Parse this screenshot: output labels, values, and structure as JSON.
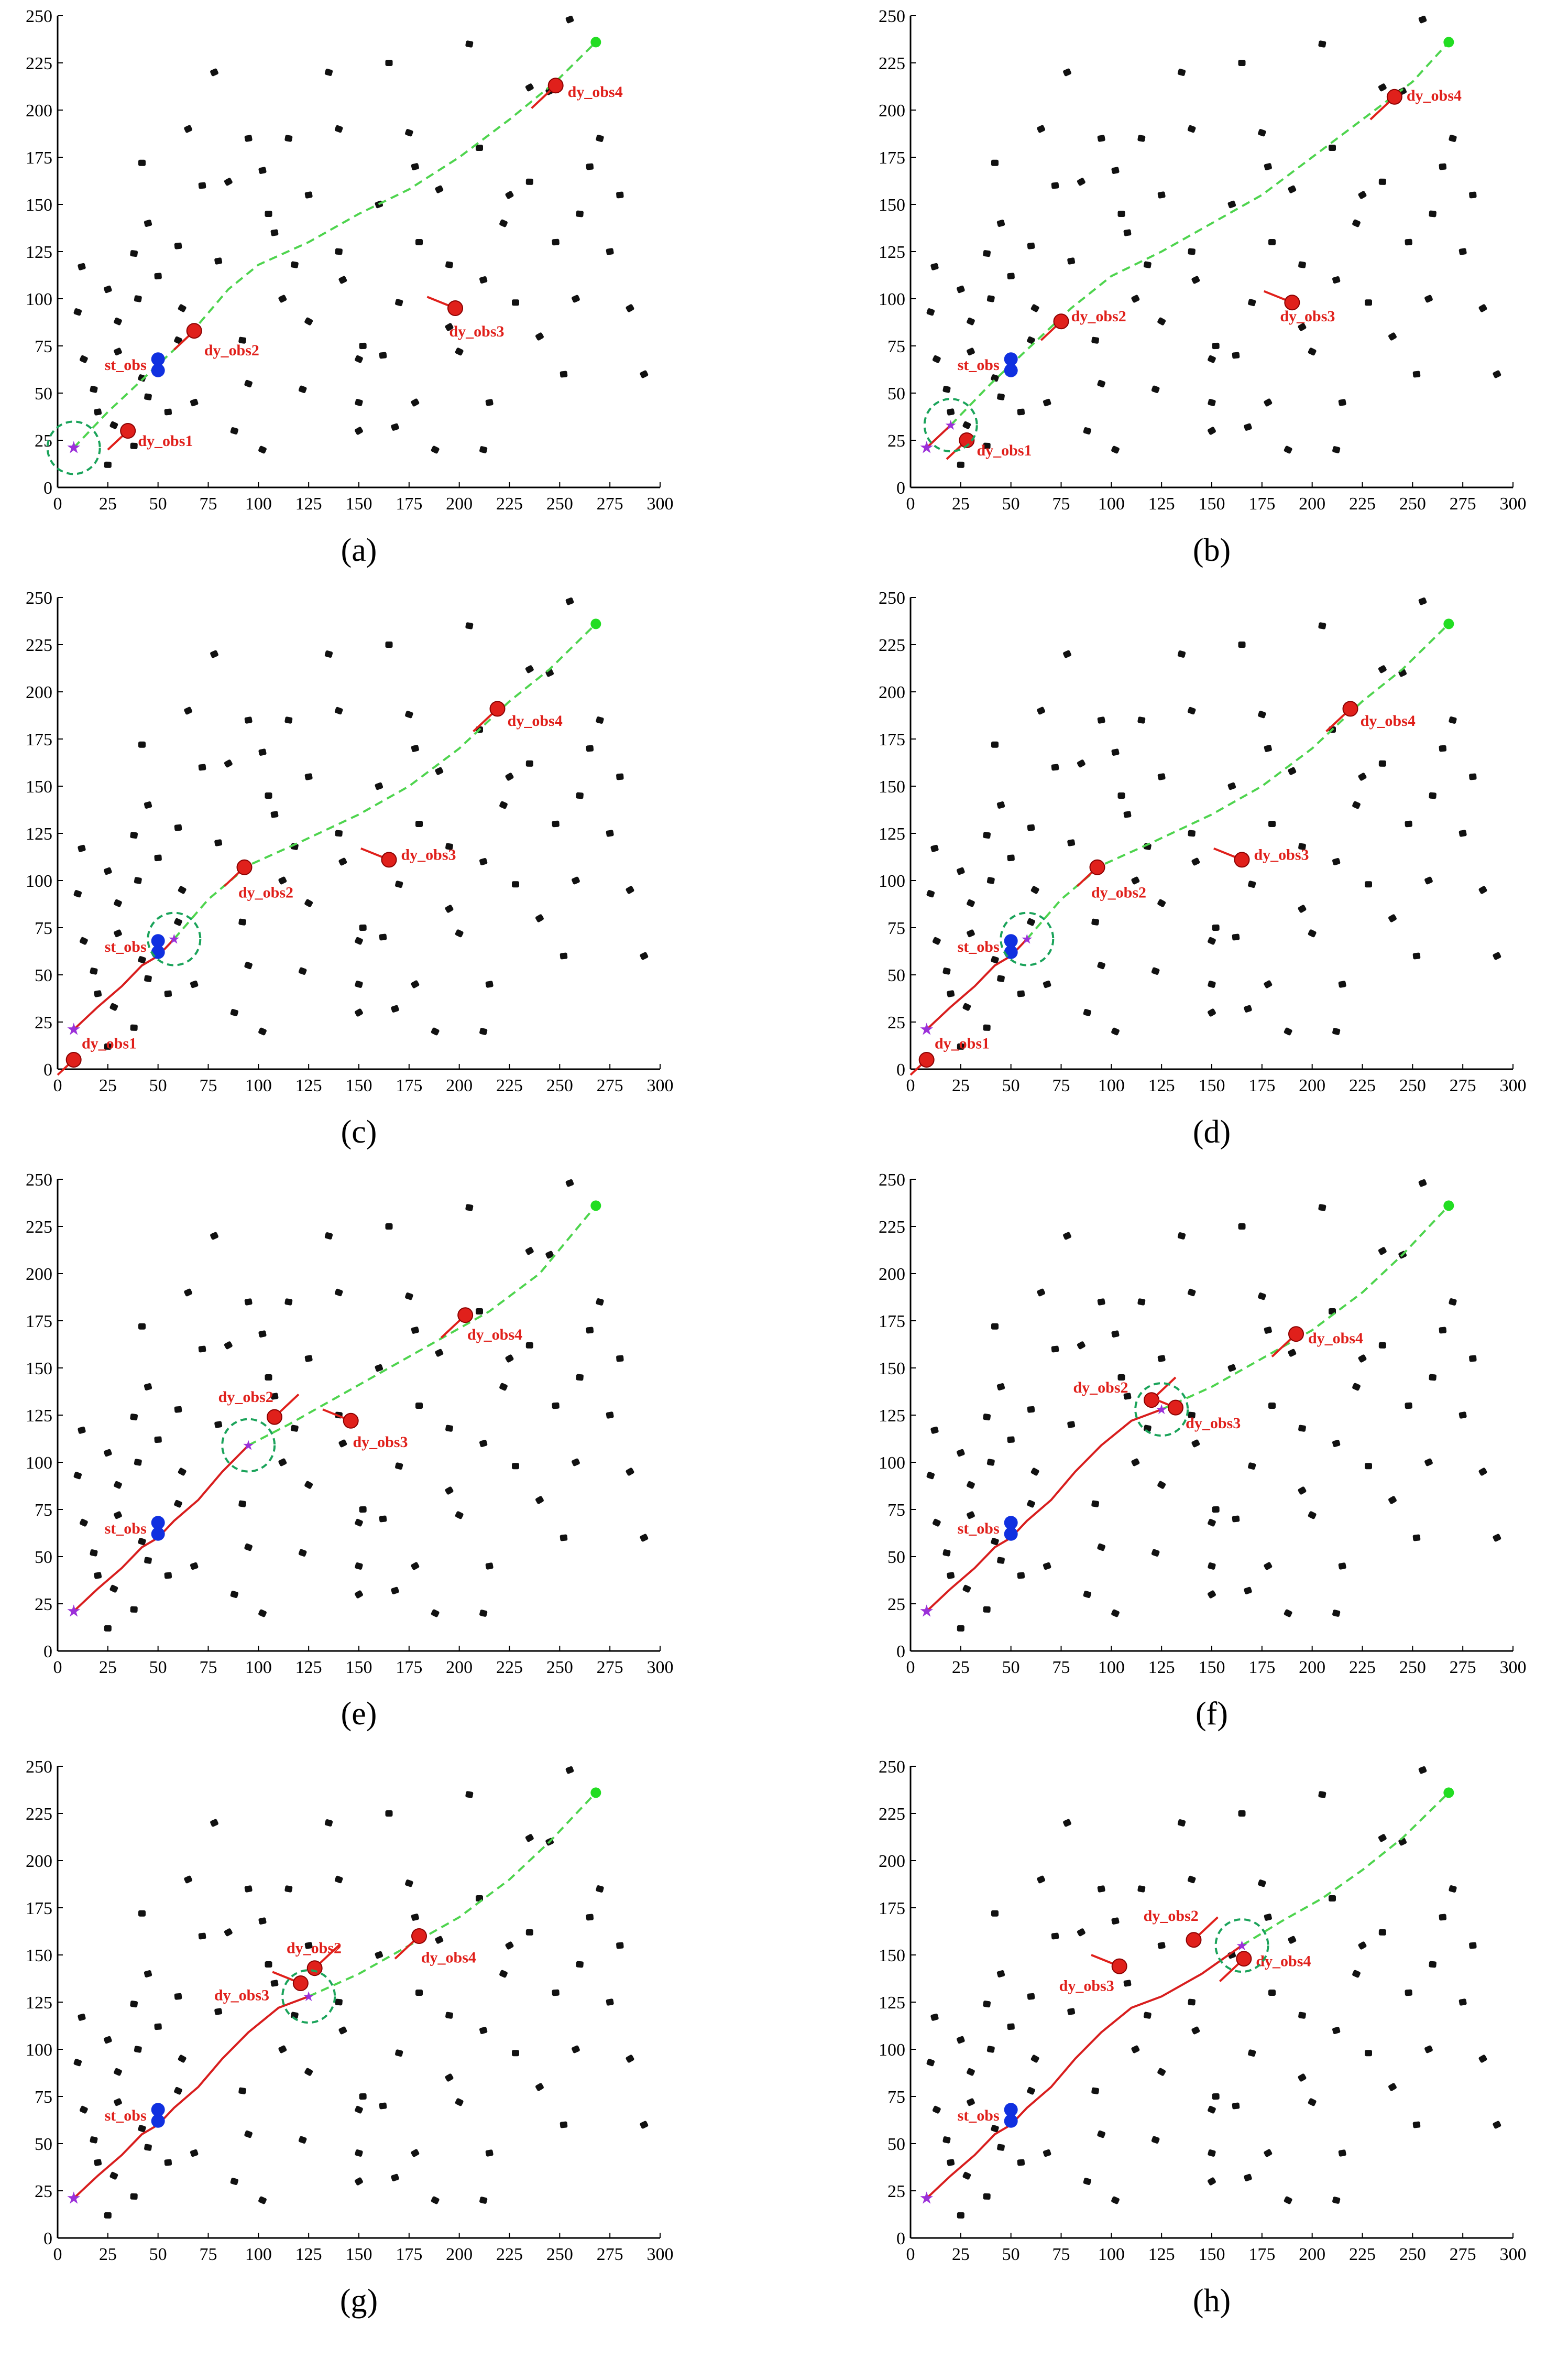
{
  "colors": {
    "dynamic_obstacle": "#e0201b",
    "static_obstacle": "#1030e0",
    "planned_path": "#4ed44e",
    "traveled_path": "#d81e1e",
    "goal": "#22dd22",
    "start": "#9b30d9",
    "sensor_range": "#1aa35a",
    "map_obstacle": "#111111"
  },
  "chart_data": {
    "type": "scatter",
    "title": "",
    "xlabel": "",
    "ylabel": "",
    "xlim": [
      0,
      300
    ],
    "ylim": [
      0,
      250
    ],
    "grid": false,
    "x_ticks": [
      0,
      25,
      50,
      75,
      100,
      125,
      150,
      175,
      200,
      225,
      250,
      275,
      300
    ],
    "y_ticks": [
      0,
      25,
      50,
      75,
      100,
      125,
      150,
      175,
      200,
      225,
      250
    ],
    "start": [
      8,
      21
    ],
    "goal": [
      268,
      236
    ],
    "static_obstacle_label": "st_obs",
    "static_obstacle_points": [
      [
        50,
        68
      ],
      [
        50,
        62
      ]
    ],
    "map_obstacles": [
      [
        12,
        117
      ],
      [
        10,
        93
      ],
      [
        13,
        68
      ],
      [
        18,
        52
      ],
      [
        20,
        40
      ],
      [
        28,
        33
      ],
      [
        38,
        22
      ],
      [
        25,
        12
      ],
      [
        25,
        105
      ],
      [
        30,
        88
      ],
      [
        38,
        124
      ],
      [
        40,
        100
      ],
      [
        30,
        72
      ],
      [
        42,
        58
      ],
      [
        45,
        48
      ],
      [
        55,
        40
      ],
      [
        42,
        172
      ],
      [
        45,
        140
      ],
      [
        50,
        112
      ],
      [
        60,
        78
      ],
      [
        60,
        128
      ],
      [
        62,
        95
      ],
      [
        68,
        45
      ],
      [
        72,
        160
      ],
      [
        78,
        220
      ],
      [
        80,
        120
      ],
      [
        88,
        30
      ],
      [
        92,
        78
      ],
      [
        95,
        55
      ],
      [
        95,
        185
      ],
      [
        102,
        20
      ],
      [
        105,
        145
      ],
      [
        108,
        135
      ],
      [
        112,
        100
      ],
      [
        115,
        185
      ],
      [
        122,
        52
      ],
      [
        125,
        88
      ],
      [
        125,
        155
      ],
      [
        135,
        220
      ],
      [
        140,
        190
      ],
      [
        140,
        125
      ],
      [
        142,
        110
      ],
      [
        150,
        68
      ],
      [
        152,
        75
      ],
      [
        150,
        45
      ],
      [
        150,
        30
      ],
      [
        160,
        150
      ],
      [
        165,
        225
      ],
      [
        168,
        32
      ],
      [
        175,
        188
      ],
      [
        178,
        45
      ],
      [
        178,
        170
      ],
      [
        180,
        130
      ],
      [
        188,
        20
      ],
      [
        195,
        85
      ],
      [
        195,
        118
      ],
      [
        205,
        235
      ],
      [
        210,
        180
      ],
      [
        212,
        20
      ],
      [
        212,
        110
      ],
      [
        215,
        45
      ],
      [
        222,
        140
      ],
      [
        225,
        155
      ],
      [
        235,
        212
      ],
      [
        240,
        80
      ],
      [
        245,
        210
      ],
      [
        248,
        130
      ],
      [
        252,
        60
      ],
      [
        258,
        100
      ],
      [
        260,
        145
      ],
      [
        265,
        170
      ],
      [
        270,
        185
      ],
      [
        275,
        125
      ],
      [
        280,
        155
      ],
      [
        285,
        95
      ],
      [
        292,
        60
      ],
      [
        235,
        162
      ],
      [
        162,
        70
      ],
      [
        118,
        118
      ],
      [
        65,
        190
      ],
      [
        170,
        98
      ],
      [
        200,
        72
      ],
      [
        255,
        248
      ],
      [
        190,
        158
      ],
      [
        102,
        168
      ],
      [
        228,
        98
      ],
      [
        85,
        162
      ]
    ],
    "panels": [
      {
        "label": "(a)",
        "robot": [
          8,
          21
        ],
        "traveled": [],
        "planned": [
          [
            8,
            21
          ],
          [
            25,
            40
          ],
          [
            45,
            60
          ],
          [
            65,
            80
          ],
          [
            85,
            105
          ],
          [
            100,
            118
          ],
          [
            125,
            130
          ],
          [
            150,
            145
          ],
          [
            175,
            158
          ],
          [
            200,
            175
          ],
          [
            225,
            195
          ],
          [
            248,
            215
          ],
          [
            268,
            236
          ]
        ],
        "dynamic_obstacles": [
          {
            "name": "dy_obs1",
            "x": 35,
            "y": 30,
            "dx": -10,
            "dy": -10,
            "lx": 40,
            "ly": 22
          },
          {
            "name": "dy_obs2",
            "x": 68,
            "y": 83,
            "dx": -10,
            "dy": -10,
            "lx": 73,
            "ly": 70
          },
          {
            "name": "dy_obs3",
            "x": 198,
            "y": 95,
            "dx": -14,
            "dy": 6,
            "lx": 195,
            "ly": 80
          },
          {
            "name": "dy_obs4",
            "x": 248,
            "y": 213,
            "dx": -12,
            "dy": -12,
            "lx": 254,
            "ly": 207
          }
        ]
      },
      {
        "label": "(b)",
        "robot": [
          20,
          33
        ],
        "traveled": [
          [
            8,
            21
          ],
          [
            20,
            33
          ]
        ],
        "planned": [
          [
            20,
            33
          ],
          [
            40,
            55
          ],
          [
            60,
            75
          ],
          [
            80,
            95
          ],
          [
            100,
            112
          ],
          [
            125,
            125
          ],
          [
            150,
            140
          ],
          [
            175,
            155
          ],
          [
            200,
            175
          ],
          [
            225,
            195
          ],
          [
            250,
            215
          ],
          [
            268,
            236
          ]
        ],
        "dynamic_obstacles": [
          {
            "name": "dy_obs1",
            "x": 28,
            "y": 25,
            "dx": -10,
            "dy": -10,
            "lx": 33,
            "ly": 17
          },
          {
            "name": "dy_obs2",
            "x": 75,
            "y": 88,
            "dx": -10,
            "dy": -10,
            "lx": 80,
            "ly": 88
          },
          {
            "name": "dy_obs3",
            "x": 190,
            "y": 98,
            "dx": -14,
            "dy": 6,
            "lx": 184,
            "ly": 88
          },
          {
            "name": "dy_obs4",
            "x": 241,
            "y": 207,
            "dx": -12,
            "dy": -12,
            "lx": 247,
            "ly": 205
          }
        ]
      },
      {
        "label": "(c)",
        "robot": [
          58,
          69
        ],
        "traveled": [
          [
            8,
            21
          ],
          [
            20,
            33
          ],
          [
            32,
            44
          ],
          [
            42,
            55
          ],
          [
            50,
            60
          ],
          [
            58,
            69
          ]
        ],
        "planned": [
          [
            58,
            69
          ],
          [
            75,
            90
          ],
          [
            95,
            108
          ],
          [
            120,
            120
          ],
          [
            150,
            135
          ],
          [
            175,
            150
          ],
          [
            200,
            170
          ],
          [
            225,
            195
          ],
          [
            245,
            212
          ],
          [
            268,
            236
          ]
        ],
        "dynamic_obstacles": [
          {
            "name": "dy_obs1",
            "x": 8,
            "y": 5,
            "dx": -8,
            "dy": -8,
            "lx": 12,
            "ly": 11
          },
          {
            "name": "dy_obs2",
            "x": 93,
            "y": 107,
            "dx": -10,
            "dy": -10,
            "lx": 90,
            "ly": 91
          },
          {
            "name": "dy_obs3",
            "x": 165,
            "y": 111,
            "dx": -14,
            "dy": 6,
            "lx": 171,
            "ly": 111
          },
          {
            "name": "dy_obs4",
            "x": 219,
            "y": 191,
            "dx": -12,
            "dy": -12,
            "lx": 224,
            "ly": 182
          }
        ]
      },
      {
        "label": "(d)",
        "robot": [
          58,
          69
        ],
        "traveled": [
          [
            8,
            21
          ],
          [
            20,
            33
          ],
          [
            32,
            44
          ],
          [
            42,
            55
          ],
          [
            50,
            60
          ],
          [
            58,
            69
          ]
        ],
        "planned": [
          [
            58,
            69
          ],
          [
            75,
            90
          ],
          [
            95,
            108
          ],
          [
            120,
            120
          ],
          [
            150,
            135
          ],
          [
            175,
            150
          ],
          [
            200,
            170
          ],
          [
            225,
            195
          ],
          [
            245,
            212
          ],
          [
            268,
            236
          ]
        ],
        "dynamic_obstacles": [
          {
            "name": "dy_obs1",
            "x": 8,
            "y": 5,
            "dx": -8,
            "dy": -8,
            "lx": 12,
            "ly": 11
          },
          {
            "name": "dy_obs2",
            "x": 93,
            "y": 107,
            "dx": -10,
            "dy": -10,
            "lx": 90,
            "ly": 91
          },
          {
            "name": "dy_obs3",
            "x": 165,
            "y": 111,
            "dx": -14,
            "dy": 6,
            "lx": 171,
            "ly": 111
          },
          {
            "name": "dy_obs4",
            "x": 219,
            "y": 191,
            "dx": -12,
            "dy": -12,
            "lx": 224,
            "ly": 182
          }
        ]
      },
      {
        "label": "(e)",
        "robot": [
          95,
          109
        ],
        "traveled": [
          [
            8,
            21
          ],
          [
            20,
            33
          ],
          [
            32,
            44
          ],
          [
            42,
            55
          ],
          [
            50,
            60
          ],
          [
            58,
            69
          ],
          [
            70,
            80
          ],
          [
            82,
            95
          ],
          [
            95,
            109
          ]
        ],
        "planned": [
          [
            95,
            109
          ],
          [
            115,
            120
          ],
          [
            140,
            135
          ],
          [
            165,
            150
          ],
          [
            190,
            165
          ],
          [
            215,
            180
          ],
          [
            240,
            200
          ],
          [
            268,
            236
          ]
        ],
        "dynamic_obstacles": [
          {
            "name": "dy_obs2",
            "x": 108,
            "y": 124,
            "dx": 12,
            "dy": 12,
            "lx": 80,
            "ly": 132
          },
          {
            "name": "dy_obs3",
            "x": 146,
            "y": 122,
            "dx": -14,
            "dy": 6,
            "lx": 147,
            "ly": 108
          },
          {
            "name": "dy_obs4",
            "x": 203,
            "y": 178,
            "dx": -12,
            "dy": -12,
            "lx": 204,
            "ly": 165
          }
        ]
      },
      {
        "label": "(f)",
        "robot": [
          125,
          128
        ],
        "traveled": [
          [
            8,
            21
          ],
          [
            20,
            33
          ],
          [
            32,
            44
          ],
          [
            42,
            55
          ],
          [
            50,
            60
          ],
          [
            58,
            69
          ],
          [
            70,
            80
          ],
          [
            82,
            95
          ],
          [
            95,
            109
          ],
          [
            110,
            122
          ],
          [
            125,
            128
          ]
        ],
        "planned": [
          [
            125,
            128
          ],
          [
            150,
            140
          ],
          [
            175,
            155
          ],
          [
            200,
            170
          ],
          [
            225,
            190
          ],
          [
            245,
            210
          ],
          [
            268,
            236
          ]
        ],
        "dynamic_obstacles": [
          {
            "name": "dy_obs2",
            "x": 120,
            "y": 133,
            "dx": 12,
            "dy": 12,
            "lx": 81,
            "ly": 137
          },
          {
            "name": "dy_obs3",
            "x": 132,
            "y": 129,
            "dx": -14,
            "dy": 6,
            "lx": 137,
            "ly": 118
          },
          {
            "name": "dy_obs4",
            "x": 192,
            "y": 168,
            "dx": -12,
            "dy": -12,
            "lx": 198,
            "ly": 163
          }
        ]
      },
      {
        "label": "(g)",
        "robot": [
          125,
          128
        ],
        "traveled": [
          [
            8,
            21
          ],
          [
            20,
            33
          ],
          [
            32,
            44
          ],
          [
            42,
            55
          ],
          [
            50,
            60
          ],
          [
            58,
            69
          ],
          [
            70,
            80
          ],
          [
            82,
            95
          ],
          [
            95,
            109
          ],
          [
            110,
            122
          ],
          [
            125,
            128
          ]
        ],
        "planned": [
          [
            125,
            128
          ],
          [
            150,
            140
          ],
          [
            175,
            155
          ],
          [
            200,
            170
          ],
          [
            225,
            190
          ],
          [
            245,
            210
          ],
          [
            268,
            236
          ]
        ],
        "dynamic_obstacles": [
          {
            "name": "dy_obs2",
            "x": 128,
            "y": 143,
            "dx": 12,
            "dy": 12,
            "lx": 114,
            "ly": 151
          },
          {
            "name": "dy_obs3",
            "x": 121,
            "y": 135,
            "dx": -14,
            "dy": 6,
            "lx": 78,
            "ly": 126
          },
          {
            "name": "dy_obs4",
            "x": 180,
            "y": 160,
            "dx": -12,
            "dy": -12,
            "lx": 181,
            "ly": 146
          }
        ]
      },
      {
        "label": "(h)",
        "robot": [
          165,
          155
        ],
        "traveled": [
          [
            8,
            21
          ],
          [
            20,
            33
          ],
          [
            32,
            44
          ],
          [
            42,
            55
          ],
          [
            50,
            60
          ],
          [
            58,
            69
          ],
          [
            70,
            80
          ],
          [
            82,
            95
          ],
          [
            95,
            109
          ],
          [
            110,
            122
          ],
          [
            125,
            128
          ],
          [
            145,
            140
          ],
          [
            165,
            155
          ]
        ],
        "planned": [
          [
            165,
            155
          ],
          [
            185,
            168
          ],
          [
            205,
            180
          ],
          [
            225,
            195
          ],
          [
            245,
            212
          ],
          [
            268,
            236
          ]
        ],
        "dynamic_obstacles": [
          {
            "name": "dy_obs2",
            "x": 141,
            "y": 158,
            "dx": 12,
            "dy": 12,
            "lx": 116,
            "ly": 168
          },
          {
            "name": "dy_obs3",
            "x": 104,
            "y": 144,
            "dx": -14,
            "dy": 6,
            "lx": 74,
            "ly": 131
          },
          {
            "name": "dy_obs4",
            "x": 166,
            "y": 148,
            "dx": -12,
            "dy": -12,
            "lx": 172,
            "ly": 144
          }
        ]
      }
    ]
  }
}
